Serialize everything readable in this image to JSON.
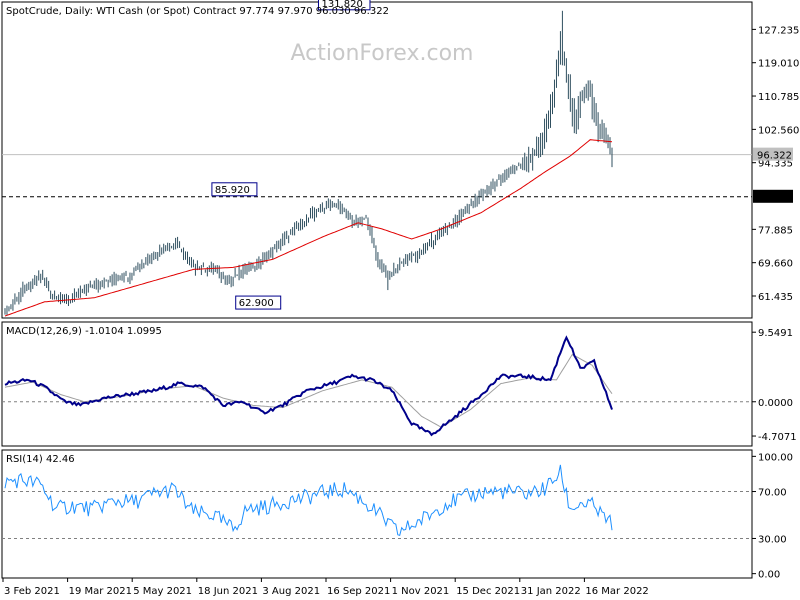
{
  "watermark": "ActionForex.com",
  "price_panel": {
    "header": "SpotCrude, Daily:  WTI Cash (or Spot) Contract  97.774 97.970 96.030 96.322",
    "y_ticks": [
      {
        "value": 127.235,
        "label": "127.235"
      },
      {
        "value": 119.01,
        "label": "119.010"
      },
      {
        "value": 110.785,
        "label": "110.785"
      },
      {
        "value": 102.56,
        "label": "102.560"
      },
      {
        "value": 94.335,
        "label": "94.335"
      },
      {
        "value": 77.885,
        "label": "77.885"
      },
      {
        "value": 69.66,
        "label": "69.660"
      },
      {
        "value": 61.435,
        "label": "61.435"
      }
    ],
    "current_price": {
      "value": 96.322,
      "label": "96.322"
    },
    "support_level": {
      "value": 85.92,
      "label": "85.920"
    },
    "annotations": [
      {
        "text": "131.820",
        "value": 131.82,
        "date_index": 185
      },
      {
        "text": "85.920",
        "value": 85.92,
        "date_index": 128
      },
      {
        "text": "62.900",
        "value": 62.9,
        "date_index": 140
      }
    ],
    "ylim": [
      56.5,
      133.5
    ]
  },
  "macd_panel": {
    "header": "MACD(12,26,9) -1.0104 1.0995",
    "y_ticks": [
      {
        "value": 9.5491,
        "label": "9.5491"
      },
      {
        "value": 0.0,
        "label": "0.0000"
      },
      {
        "value": -4.7071,
        "label": "-4.7071"
      }
    ],
    "ylim": [
      -5.8,
      10.4
    ]
  },
  "rsi_panel": {
    "header": "RSI(14) 42.46",
    "y_ticks": [
      {
        "value": 100,
        "label": "100.00"
      },
      {
        "value": 70,
        "label": "70.00"
      },
      {
        "value": 30,
        "label": "30.00"
      },
      {
        "value": 0,
        "label": "0.00"
      }
    ],
    "levels": [
      70,
      30
    ],
    "ylim": [
      -2,
      102
    ]
  },
  "x_axis": {
    "labels": [
      "3 Feb 2021",
      "19 Mar 2021",
      "5 May 2021",
      "18 Jun 2021",
      "3 Aug 2021",
      "16 Sep 2021",
      "1 Nov 2021",
      "15 Dec 2021",
      "31 Jan 2022",
      "16 Mar 2022"
    ]
  },
  "colors": {
    "bars": "#2f4f5f",
    "ma": "#e00000",
    "macd": "#00008b",
    "signal": "#a0a0a0",
    "rsi": "#1e90ff",
    "level": "#808080",
    "frame": "#000000"
  },
  "chart_data": {
    "type": "line",
    "title": "SpotCrude, Daily: WTI Cash (or Spot) Contract",
    "x_start": "3 Feb 2021",
    "x_end": "6 Apr 2022",
    "close_keypoints": [
      {
        "i": 0,
        "v": 57.5
      },
      {
        "i": 10,
        "v": 63.5
      },
      {
        "i": 18,
        "v": 66.5
      },
      {
        "i": 24,
        "v": 61.5
      },
      {
        "i": 32,
        "v": 60.5
      },
      {
        "i": 40,
        "v": 63.0
      },
      {
        "i": 50,
        "v": 65.0
      },
      {
        "i": 62,
        "v": 66.5
      },
      {
        "i": 75,
        "v": 71.5
      },
      {
        "i": 86,
        "v": 74.5
      },
      {
        "i": 95,
        "v": 68.5
      },
      {
        "i": 105,
        "v": 68.0
      },
      {
        "i": 113,
        "v": 65.0
      },
      {
        "i": 120,
        "v": 68.0
      },
      {
        "i": 128,
        "v": 69.5
      },
      {
        "i": 140,
        "v": 75.5
      },
      {
        "i": 150,
        "v": 79.5
      },
      {
        "i": 160,
        "v": 83.5
      },
      {
        "i": 168,
        "v": 84.0
      },
      {
        "i": 176,
        "v": 79.5
      },
      {
        "i": 182,
        "v": 80.5
      },
      {
        "i": 188,
        "v": 70.0
      },
      {
        "i": 193,
        "v": 66.0
      },
      {
        "i": 200,
        "v": 70.0
      },
      {
        "i": 208,
        "v": 71.5
      },
      {
        "i": 216,
        "v": 75.5
      },
      {
        "i": 226,
        "v": 79.5
      },
      {
        "i": 236,
        "v": 84.5
      },
      {
        "i": 246,
        "v": 89.0
      },
      {
        "i": 254,
        "v": 92.0
      },
      {
        "i": 262,
        "v": 94.5
      },
      {
        "i": 270,
        "v": 98.5
      },
      {
        "i": 276,
        "v": 110.0
      },
      {
        "i": 280,
        "v": 124.0
      },
      {
        "i": 283,
        "v": 116.0
      },
      {
        "i": 287,
        "v": 103.0
      },
      {
        "i": 290,
        "v": 110.0
      },
      {
        "i": 294,
        "v": 114.0
      },
      {
        "i": 298,
        "v": 104.0
      },
      {
        "i": 302,
        "v": 101.0
      },
      {
        "i": 306,
        "v": 96.3
      }
    ],
    "ma_keypoints": [
      {
        "i": 0,
        "v": 56.5
      },
      {
        "i": 20,
        "v": 60.0
      },
      {
        "i": 45,
        "v": 61.0
      },
      {
        "i": 70,
        "v": 64.5
      },
      {
        "i": 95,
        "v": 68.0
      },
      {
        "i": 115,
        "v": 68.5
      },
      {
        "i": 135,
        "v": 70.5
      },
      {
        "i": 160,
        "v": 76.0
      },
      {
        "i": 178,
        "v": 79.5
      },
      {
        "i": 190,
        "v": 78.0
      },
      {
        "i": 205,
        "v": 75.5
      },
      {
        "i": 220,
        "v": 78.0
      },
      {
        "i": 240,
        "v": 82.0
      },
      {
        "i": 260,
        "v": 88.0
      },
      {
        "i": 272,
        "v": 92.0
      },
      {
        "i": 285,
        "v": 96.0
      },
      {
        "i": 295,
        "v": 100.0
      },
      {
        "i": 306,
        "v": 99.5
      }
    ],
    "macd_keypoints": [
      {
        "i": 0,
        "v": 2.5
      },
      {
        "i": 12,
        "v": 3.0
      },
      {
        "i": 20,
        "v": 2.0
      },
      {
        "i": 30,
        "v": 0.0
      },
      {
        "i": 38,
        "v": -0.5
      },
      {
        "i": 50,
        "v": 0.5
      },
      {
        "i": 62,
        "v": 1.0
      },
      {
        "i": 75,
        "v": 1.5
      },
      {
        "i": 88,
        "v": 2.5
      },
      {
        "i": 100,
        "v": 2.0
      },
      {
        "i": 110,
        "v": -0.5
      },
      {
        "i": 120,
        "v": 0.0
      },
      {
        "i": 130,
        "v": -1.5
      },
      {
        "i": 140,
        "v": -0.5
      },
      {
        "i": 152,
        "v": 1.5
      },
      {
        "i": 165,
        "v": 2.5
      },
      {
        "i": 175,
        "v": 3.5
      },
      {
        "i": 185,
        "v": 3.0
      },
      {
        "i": 195,
        "v": 1.5
      },
      {
        "i": 205,
        "v": -3.0
      },
      {
        "i": 215,
        "v": -4.5
      },
      {
        "i": 225,
        "v": -2.5
      },
      {
        "i": 238,
        "v": 0.5
      },
      {
        "i": 250,
        "v": 3.5
      },
      {
        "i": 262,
        "v": 3.5
      },
      {
        "i": 275,
        "v": 3.0
      },
      {
        "i": 283,
        "v": 9.0
      },
      {
        "i": 290,
        "v": 4.5
      },
      {
        "i": 297,
        "v": 5.5
      },
      {
        "i": 306,
        "v": -1.0
      }
    ],
    "signal_keypoints": [
      {
        "i": 0,
        "v": 2.0
      },
      {
        "i": 14,
        "v": 2.7
      },
      {
        "i": 28,
        "v": 1.0
      },
      {
        "i": 40,
        "v": 0.0
      },
      {
        "i": 60,
        "v": 0.8
      },
      {
        "i": 80,
        "v": 1.8
      },
      {
        "i": 95,
        "v": 2.2
      },
      {
        "i": 110,
        "v": 0.5
      },
      {
        "i": 125,
        "v": -0.5
      },
      {
        "i": 140,
        "v": -0.8
      },
      {
        "i": 160,
        "v": 1.5
      },
      {
        "i": 180,
        "v": 3.0
      },
      {
        "i": 195,
        "v": 2.0
      },
      {
        "i": 210,
        "v": -2.0
      },
      {
        "i": 220,
        "v": -3.5
      },
      {
        "i": 235,
        "v": -1.0
      },
      {
        "i": 250,
        "v": 2.5
      },
      {
        "i": 265,
        "v": 3.3
      },
      {
        "i": 278,
        "v": 3.0
      },
      {
        "i": 286,
        "v": 6.5
      },
      {
        "i": 296,
        "v": 5.0
      },
      {
        "i": 306,
        "v": 1.1
      }
    ],
    "rsi_keypoints": [
      {
        "i": 0,
        "v": 78
      },
      {
        "i": 8,
        "v": 80
      },
      {
        "i": 18,
        "v": 76
      },
      {
        "i": 26,
        "v": 55
      },
      {
        "i": 34,
        "v": 58
      },
      {
        "i": 44,
        "v": 55
      },
      {
        "i": 55,
        "v": 62
      },
      {
        "i": 65,
        "v": 61
      },
      {
        "i": 75,
        "v": 68
      },
      {
        "i": 85,
        "v": 72
      },
      {
        "i": 95,
        "v": 52
      },
      {
        "i": 105,
        "v": 50
      },
      {
        "i": 115,
        "v": 38
      },
      {
        "i": 122,
        "v": 55
      },
      {
        "i": 132,
        "v": 57
      },
      {
        "i": 142,
        "v": 62
      },
      {
        "i": 152,
        "v": 65
      },
      {
        "i": 162,
        "v": 70
      },
      {
        "i": 172,
        "v": 72
      },
      {
        "i": 182,
        "v": 60
      },
      {
        "i": 190,
        "v": 48
      },
      {
        "i": 198,
        "v": 35
      },
      {
        "i": 206,
        "v": 42
      },
      {
        "i": 214,
        "v": 50
      },
      {
        "i": 222,
        "v": 60
      },
      {
        "i": 232,
        "v": 65
      },
      {
        "i": 242,
        "v": 70
      },
      {
        "i": 252,
        "v": 70
      },
      {
        "i": 262,
        "v": 68
      },
      {
        "i": 272,
        "v": 72
      },
      {
        "i": 280,
        "v": 86
      },
      {
        "i": 285,
        "v": 55
      },
      {
        "i": 290,
        "v": 60
      },
      {
        "i": 296,
        "v": 58
      },
      {
        "i": 302,
        "v": 48
      },
      {
        "i": 306,
        "v": 42.5
      }
    ]
  }
}
